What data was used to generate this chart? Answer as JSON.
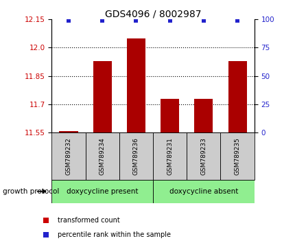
{
  "title": "GDS4096 / 8002987",
  "samples": [
    "GSM789232",
    "GSM789234",
    "GSM789236",
    "GSM789231",
    "GSM789233",
    "GSM789235"
  ],
  "transformed_counts": [
    11.557,
    11.93,
    12.05,
    11.73,
    11.73,
    11.93
  ],
  "percentile_ranks": [
    99,
    99,
    99,
    99,
    99,
    99
  ],
  "ylim_left": [
    11.55,
    12.15
  ],
  "ylim_right": [
    0,
    100
  ],
  "yticks_left": [
    11.55,
    11.7,
    11.85,
    12.0,
    12.15
  ],
  "yticks_right": [
    0,
    25,
    50,
    75,
    100
  ],
  "bar_color": "#aa0000",
  "dot_color": "#2222cc",
  "bar_bottom": 11.55,
  "groups": [
    {
      "label": "doxycycline present",
      "indices": [
        0,
        1,
        2
      ],
      "color": "#90ee90"
    },
    {
      "label": "doxycycline absent",
      "indices": [
        3,
        4,
        5
      ],
      "color": "#90ee90"
    }
  ],
  "group_protocol_label": "growth protocol",
  "legend_items": [
    {
      "label": "transformed count",
      "color": "#cc0000"
    },
    {
      "label": "percentile rank within the sample",
      "color": "#2222cc"
    }
  ],
  "tick_label_color_left": "#cc0000",
  "tick_label_color_right": "#2222cc",
  "sample_box_color": "#cccccc",
  "dotted_yticks": [
    12.0,
    11.85,
    11.7
  ],
  "bar_width": 0.55
}
